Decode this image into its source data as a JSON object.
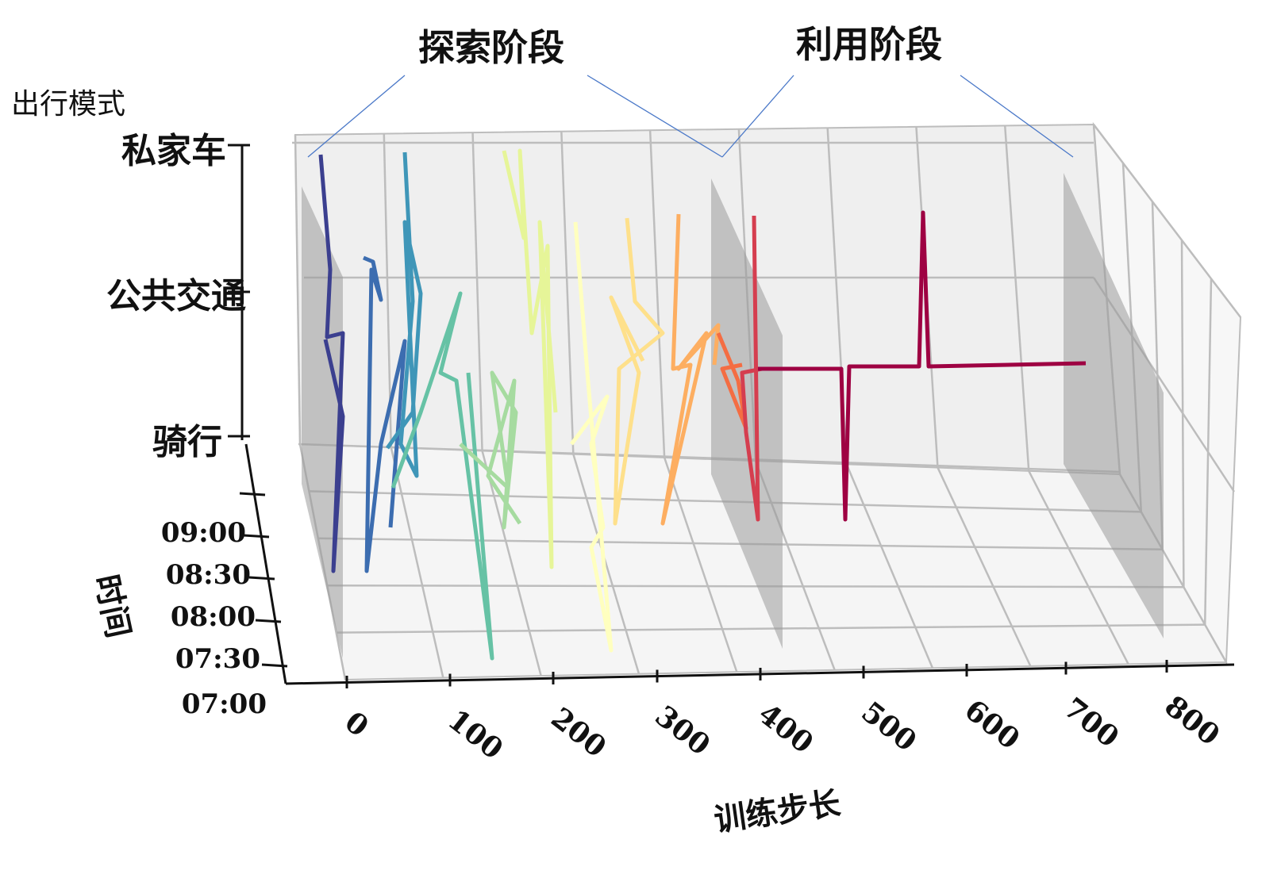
{
  "chart_data": {
    "type": "line",
    "annotations": [
      "探索阶段",
      "利用阶段"
    ],
    "axis_titles": {
      "mode": "出行模式",
      "time": "时间",
      "step": "训练步长"
    },
    "mode_ticks": [
      "私家车",
      "公共交通",
      "骑行"
    ],
    "time_ticks": [
      "09:00",
      "08:30",
      "08:00",
      "07:30",
      "07:00"
    ],
    "step_ticks": [
      "0",
      "100",
      "200",
      "300",
      "400",
      "500",
      "600",
      "700",
      "800"
    ],
    "step_range": [
      0,
      800
    ],
    "grid": true,
    "colormap": "Spectral_r",
    "colors": [
      "#3b3f8f",
      "#3c6db0",
      "#3f96b8",
      "#66c2a5",
      "#a6dba0",
      "#e6f598",
      "#ffffbf",
      "#fee08b",
      "#fdae61",
      "#f46d43",
      "#d53e4f",
      "#9e0142"
    ],
    "highlight_planes_step": [
      0,
      400,
      800
    ]
  }
}
